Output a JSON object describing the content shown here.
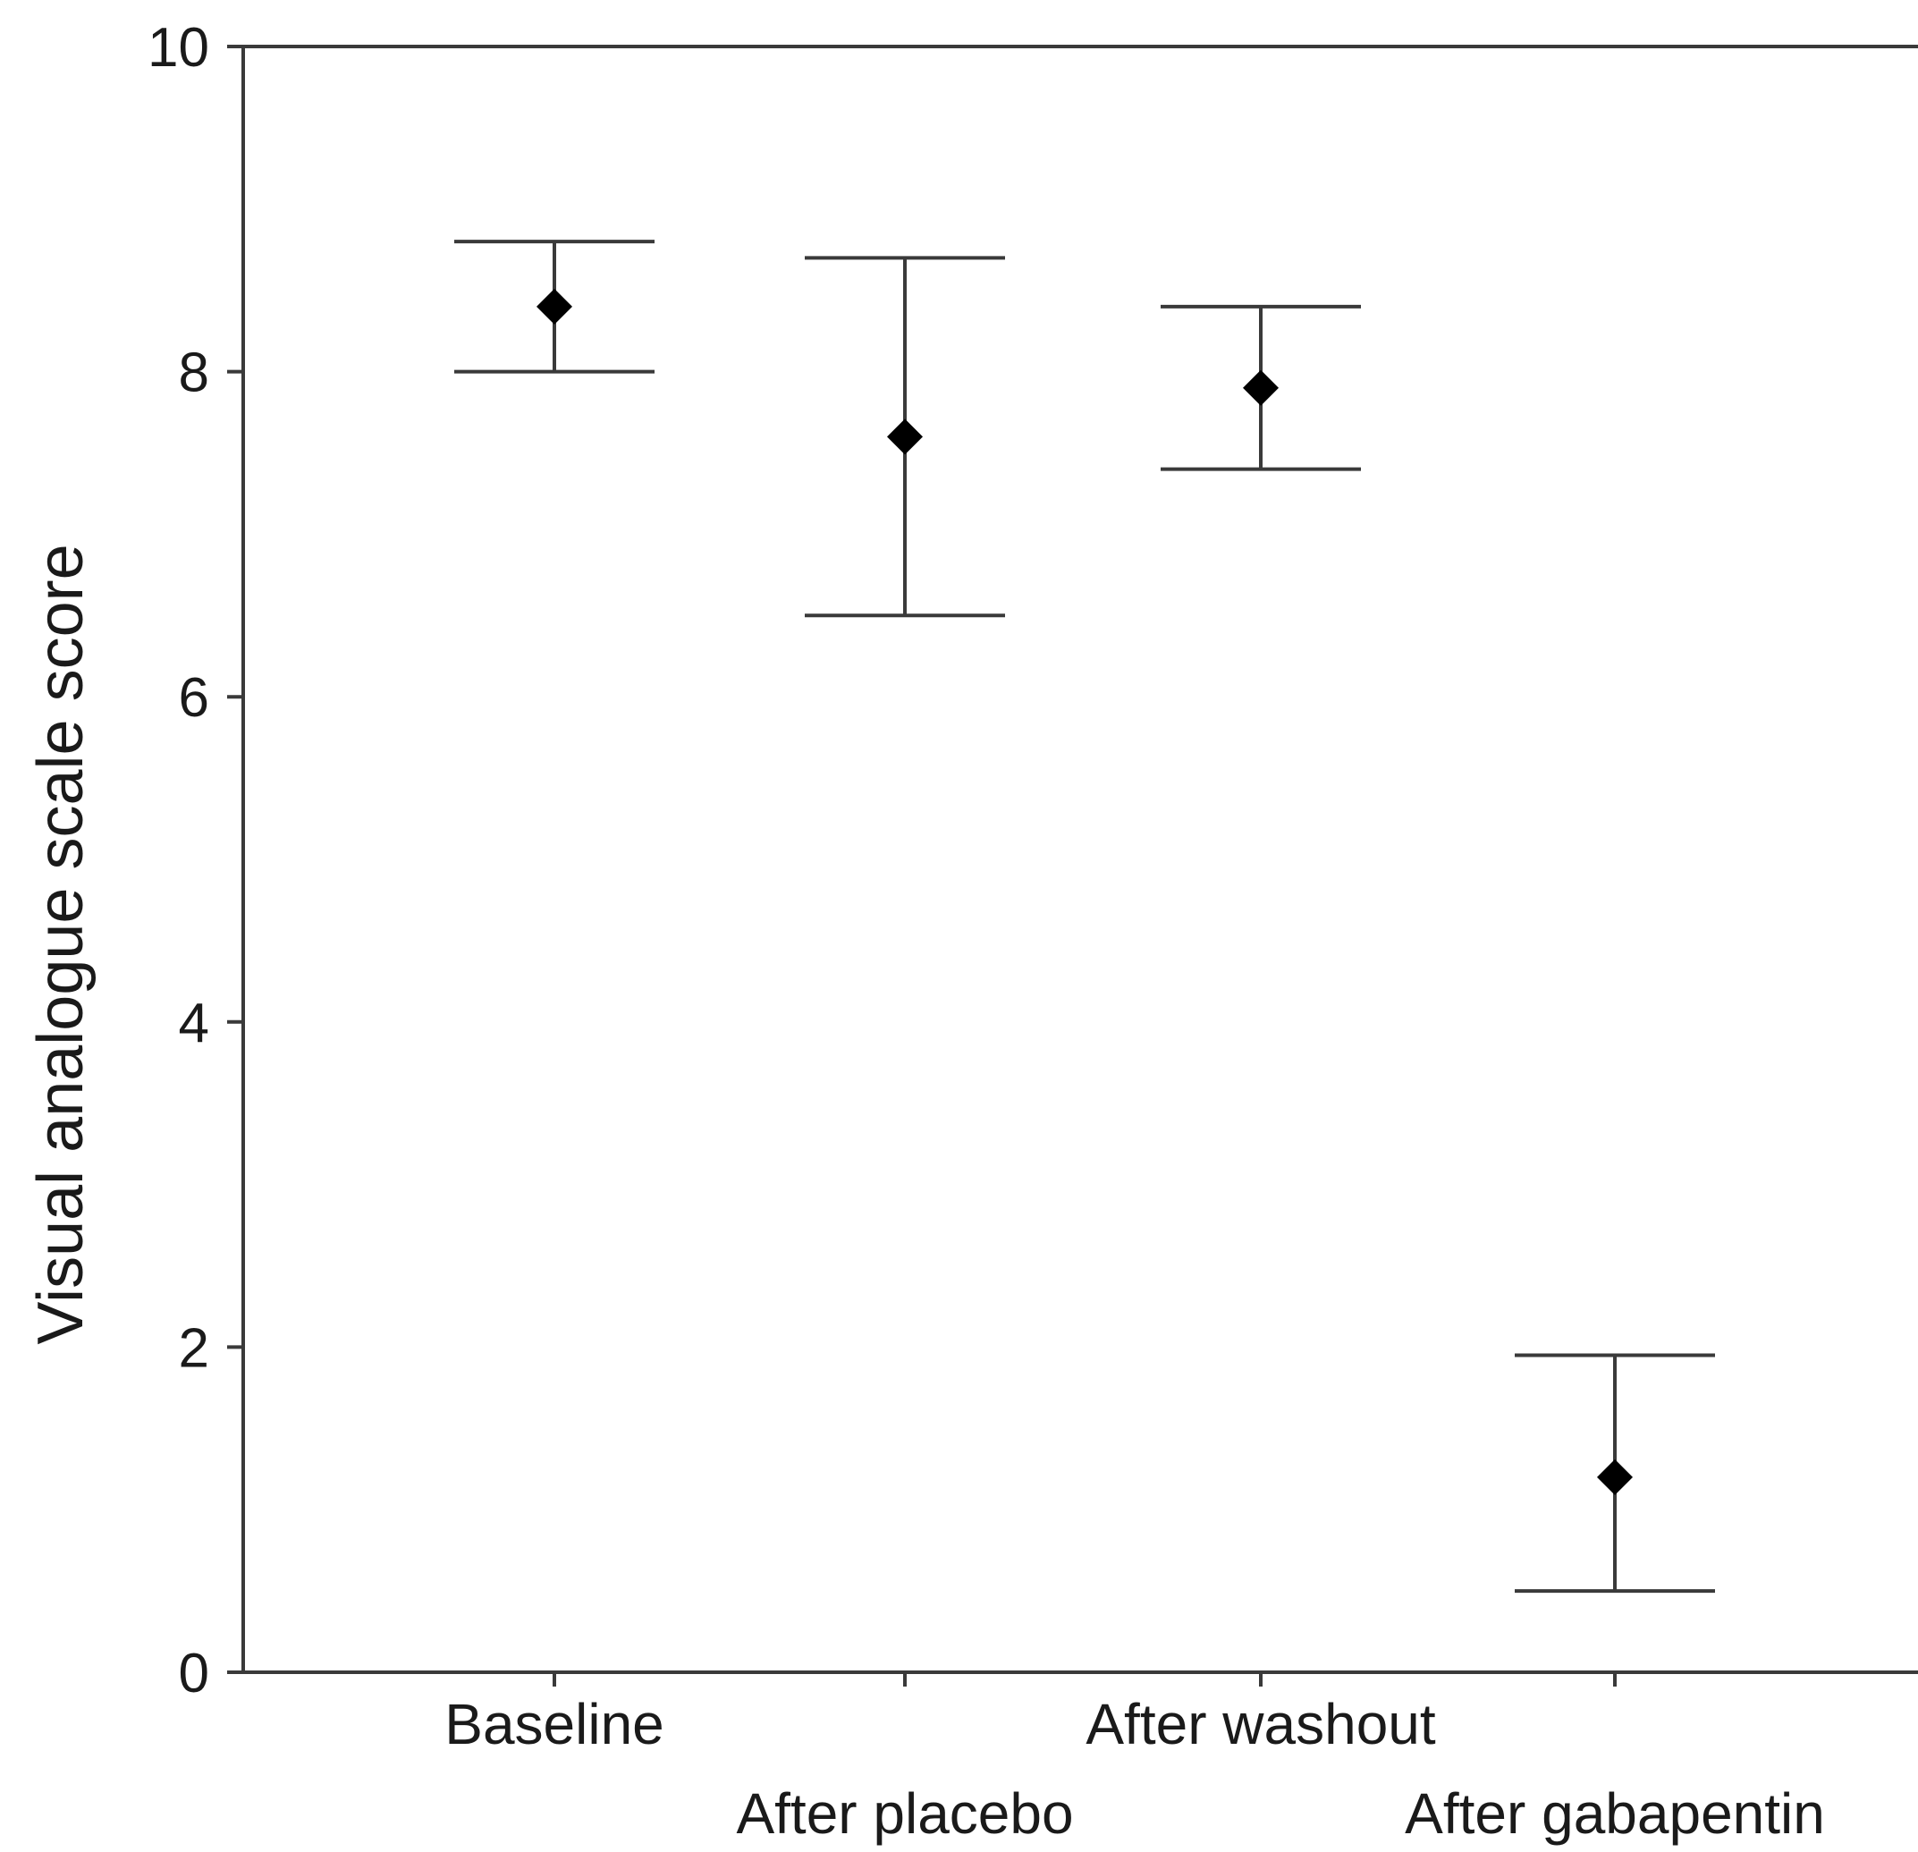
{
  "chart_data": {
    "type": "scatter",
    "title": "",
    "xlabel": "",
    "ylabel": "Visual analogue scale score",
    "ylim": [
      0,
      10
    ],
    "yticks": [
      0,
      2,
      4,
      6,
      8,
      10
    ],
    "grid": false,
    "legend": "none",
    "marker": "diamond",
    "categories": [
      "Baseline",
      "After placebo",
      "After washout",
      "After gabapentin"
    ],
    "series": [
      {
        "values": [
          8.4,
          7.6,
          7.9,
          1.2
        ],
        "error_low": [
          8.0,
          6.5,
          7.4,
          0.5
        ],
        "error_high": [
          8.8,
          8.7,
          8.4,
          1.95
        ]
      }
    ],
    "colors": {
      "axis": "#3a3a3a",
      "marker": "#000000",
      "text": "#1a1a1a"
    }
  }
}
